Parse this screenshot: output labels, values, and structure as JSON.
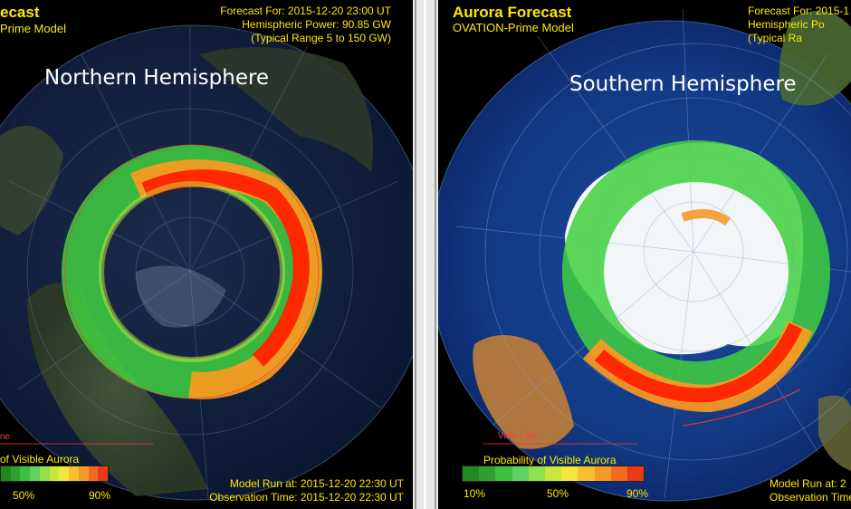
{
  "left": {
    "title_partial": "ecast",
    "model_partial": "Prime Model",
    "forecast_for": "Forecast For: 2015-12-20 23:00 UT",
    "hemispheric_power": "Hemispheric Power: 90.85 GW",
    "typical_range": "(Typical Range 5 to 150 GW)",
    "hemisphere_label": "Northern Hemisphere",
    "legend_title": "of Visible Aurora",
    "legend_ticks": [
      "50%",
      "90%"
    ],
    "model_run": "Model Run at: 2015-12-20 22:30 UT",
    "observation_time": "Observation Time: 2015-12-20 22:30 UT",
    "view_line_partial": "ne"
  },
  "right": {
    "title": "Aurora Forecast",
    "model": "OVATION-Prime Model",
    "forecast_for_partial": "Forecast For: 2015-1",
    "hemispheric_power_partial": "Hemispheric Po",
    "typical_range_partial": "(Typical Ra",
    "hemisphere_label": "Southern Hemisphere",
    "legend_title": "Probability of Visible Aurora",
    "legend_ticks": [
      "10%",
      "50%",
      "90%"
    ],
    "model_run_partial": "Model Run at: 2",
    "observation_time_partial": "Observation Time: 2",
    "view_line": "View Line"
  },
  "legend_colors": [
    "#1f8a1f",
    "#2ea02e",
    "#3fbf3f",
    "#5fd35f",
    "#8fe04a",
    "#c8e83c",
    "#f0e83c",
    "#f8c030",
    "#f59a28",
    "#f06a20",
    "#e83a18"
  ],
  "colors": {
    "label_yellow": "#ffe800",
    "aurora_green": "#3fd03f",
    "aurora_red": "#ff2200",
    "ocean": "#0d2a66"
  }
}
